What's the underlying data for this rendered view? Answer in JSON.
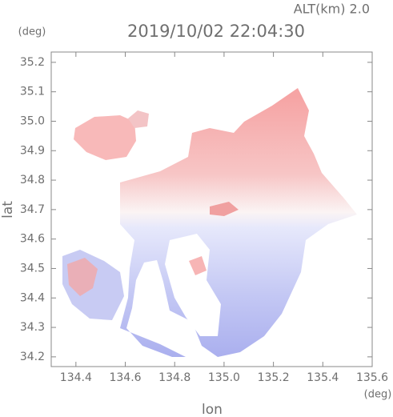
{
  "chart_data": {
    "type": "radar-field",
    "title": "2019/10/02 22:04:30",
    "altitude_label": "ALT(km) 2.0",
    "y_unit": "(deg)",
    "x_unit": "(deg)",
    "x_label": "lon",
    "y_label": "lat",
    "xlim": [
      134.3,
      135.6
    ],
    "ylim": [
      34.167,
      35.235
    ],
    "xticks": [
      134.4,
      134.6,
      134.8,
      {
        "value": 135,
        "label": "135.0"
      },
      135.2,
      135.4,
      135.6
    ],
    "yticks": [
      34.2,
      34.3,
      34.4,
      34.5,
      34.6,
      34.7,
      34.8,
      34.9,
      {
        "value": 35,
        "label": "35.0"
      },
      35.1,
      35.2
    ]
  }
}
